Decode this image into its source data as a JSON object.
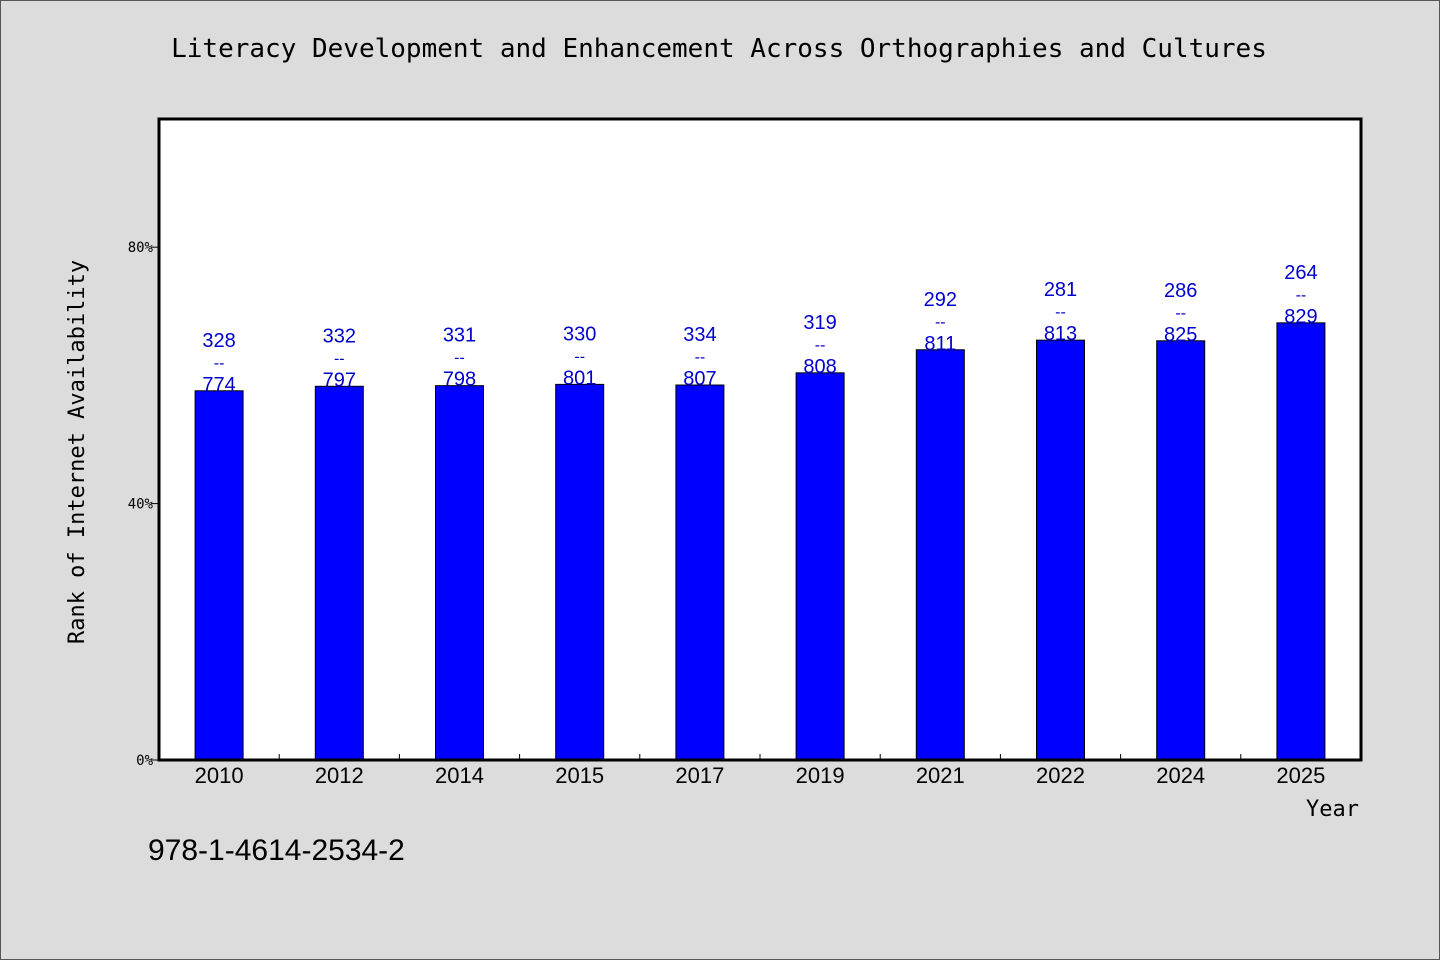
{
  "chart_data": {
    "type": "bar",
    "title": "Literacy Development and Enhancement Across Orthographies and Cultures",
    "xlabel": "Year",
    "ylabel": "Rank of Internet Availability",
    "categories": [
      "2010",
      "2012",
      "2014",
      "2015",
      "2017",
      "2019",
      "2021",
      "2022",
      "2024",
      "2025"
    ],
    "values": [
      57.6,
      58.3,
      58.4,
      58.6,
      58.5,
      60.4,
      64.0,
      65.5,
      65.4,
      68.2
    ],
    "value_unit": "%",
    "bar_labels": [
      {
        "top": "328",
        "bottom": "774"
      },
      {
        "top": "332",
        "bottom": "797"
      },
      {
        "top": "331",
        "bottom": "798"
      },
      {
        "top": "330",
        "bottom": "801"
      },
      {
        "top": "334",
        "bottom": "807"
      },
      {
        "top": "319",
        "bottom": "808"
      },
      {
        "top": "292",
        "bottom": "811"
      },
      {
        "top": "281",
        "bottom": "813"
      },
      {
        "top": "286",
        "bottom": "825"
      },
      {
        "top": "264",
        "bottom": "829"
      }
    ],
    "label_separator": "--",
    "ylim": [
      0,
      100
    ],
    "yticks": [
      0,
      40,
      80
    ],
    "ytick_labels": [
      "0%",
      "40%",
      "80%"
    ],
    "grid": false,
    "legend": "none",
    "colors": {
      "bar": "#0000ff",
      "bar_label": "#0000cc",
      "plot_bg": "#ffffff",
      "page_bg": "#dcdcdc"
    }
  },
  "footer": {
    "isbn": "978-1-4614-2534-2"
  }
}
